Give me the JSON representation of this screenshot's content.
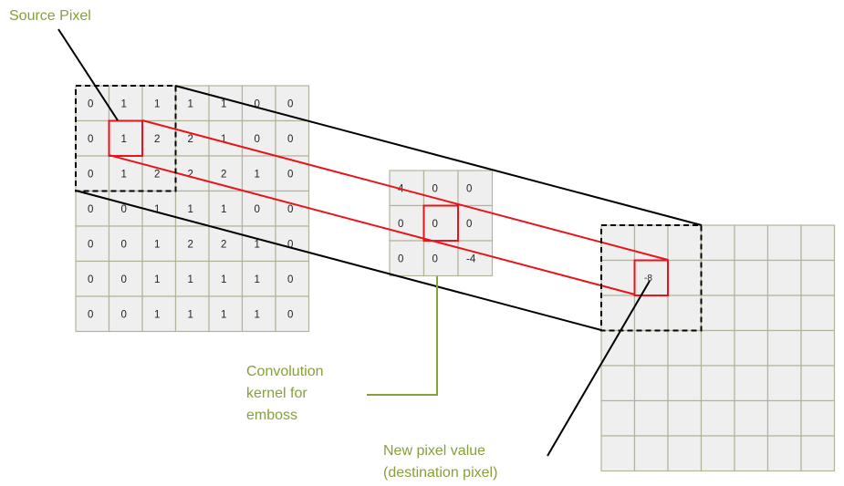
{
  "labels": {
    "source_pixel": "Source Pixel",
    "kernel_line1": "Convolution",
    "kernel_line2": "kernel for",
    "kernel_line3": "emboss",
    "dest_line1": "New pixel value",
    "dest_line2": "(destination pixel)"
  },
  "colors": {
    "annotation": "#86a03a",
    "highlight": "#e8141c",
    "outline": "#000000",
    "cell_fill": "#efefef",
    "cell_border": "#b3b39a"
  },
  "source_grid": [
    [
      "0",
      "1",
      "1",
      "1",
      "1",
      "0",
      "0"
    ],
    [
      "0",
      "1",
      "2",
      "2",
      "1",
      "0",
      "0"
    ],
    [
      "0",
      "1",
      "2",
      "2",
      "2",
      "1",
      "0"
    ],
    [
      "0",
      "0",
      "1",
      "1",
      "1",
      "0",
      "0"
    ],
    [
      "0",
      "0",
      "1",
      "2",
      "2",
      "1",
      "0"
    ],
    [
      "0",
      "0",
      "1",
      "1",
      "1",
      "1",
      "0"
    ],
    [
      "0",
      "0",
      "1",
      "1",
      "1",
      "1",
      "0"
    ]
  ],
  "kernel": [
    [
      "4",
      "0",
      "0"
    ],
    [
      "0",
      "0",
      "0"
    ],
    [
      "0",
      "0",
      "-4"
    ]
  ],
  "destination_grid": {
    "rows": 7,
    "cols": 7,
    "new_value": "-8"
  }
}
